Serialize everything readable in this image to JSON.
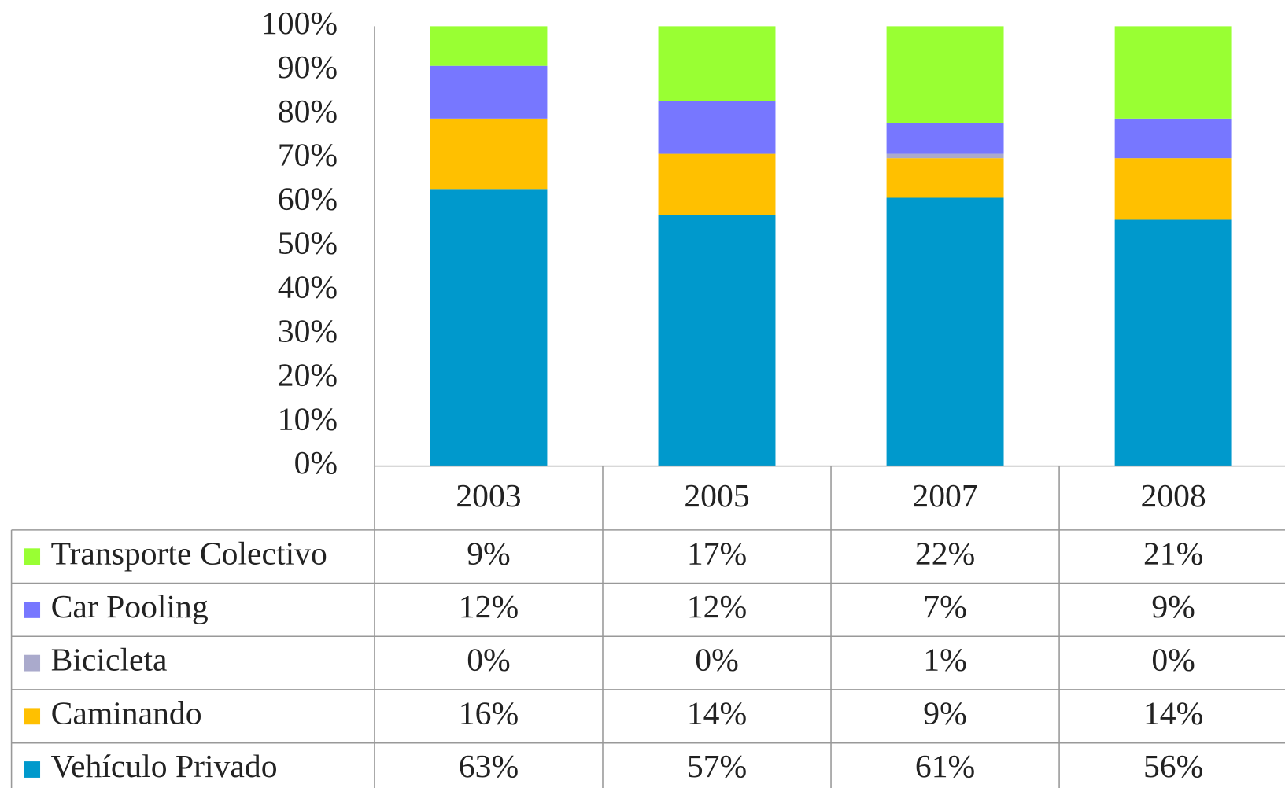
{
  "chart_data": {
    "type": "stacked_bar",
    "categories": [
      "2003",
      "2005",
      "2007",
      "2008"
    ],
    "series": [
      {
        "name": "Transporte Colectivo",
        "color": "#99ff33",
        "values": [
          9,
          17,
          22,
          21
        ],
        "value_labels": [
          "9%",
          "17%",
          "22%",
          "21%"
        ]
      },
      {
        "name": "Car Pooling",
        "color": "#7777ff",
        "values": [
          12,
          12,
          7,
          9
        ],
        "value_labels": [
          "12%",
          "12%",
          "7%",
          "9%"
        ]
      },
      {
        "name": "Bicicleta",
        "color": "#aaaacc",
        "values": [
          0,
          0,
          1,
          0
        ],
        "value_labels": [
          "0%",
          "0%",
          "1%",
          "0%"
        ]
      },
      {
        "name": "Caminando",
        "color": "#ffc000",
        "values": [
          16,
          14,
          9,
          14
        ],
        "value_labels": [
          "16%",
          "14%",
          "9%",
          "14%"
        ]
      },
      {
        "name": "Vehículo Privado",
        "color": "#0099cc",
        "values": [
          63,
          57,
          61,
          56
        ],
        "value_labels": [
          "63%",
          "57%",
          "61%",
          "56%"
        ]
      }
    ],
    "ylim": [
      0,
      100
    ],
    "yticks": [
      {
        "value": 0,
        "label": "0%"
      },
      {
        "value": 10,
        "label": "10%"
      },
      {
        "value": 20,
        "label": "20%"
      },
      {
        "value": 30,
        "label": "30%"
      },
      {
        "value": 40,
        "label": "40%"
      },
      {
        "value": 50,
        "label": "50%"
      },
      {
        "value": 60,
        "label": "60%"
      },
      {
        "value": 70,
        "label": "70%"
      },
      {
        "value": 80,
        "label": "80%"
      },
      {
        "value": 90,
        "label": "90%"
      },
      {
        "value": 100,
        "label": "100%"
      }
    ],
    "grid": false,
    "data_table": true
  }
}
